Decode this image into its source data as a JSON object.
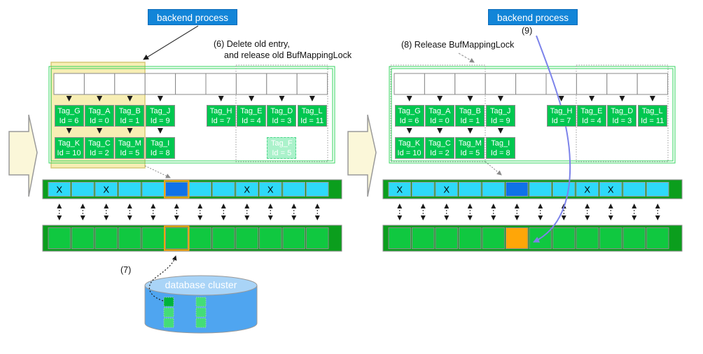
{
  "panels": {
    "left": {
      "backend_label": "backend process",
      "annotation_line1": "(6) Delete old entry,",
      "annotation_line2": "and release old BufMappingLock",
      "step_label": "(7)"
    },
    "right": {
      "backend_label": "backend process",
      "annotation_line1": "(8) Release BufMappingLock",
      "step_label": "(9)"
    }
  },
  "buffer_table": {
    "slot_count": 9,
    "row1_left": [
      {
        "tag": "Tag_G",
        "id": "Id = 6"
      },
      {
        "tag": "Tag_A",
        "id": "Id = 0"
      },
      {
        "tag": "Tag_B",
        "id": "Id = 1"
      },
      {
        "tag": "Tag_J",
        "id": "Id = 9"
      }
    ],
    "row2_left": [
      {
        "tag": "Tag_K",
        "id": "Id = 10"
      },
      {
        "tag": "Tag_C",
        "id": "Id = 2"
      },
      {
        "tag": "Tag_M",
        "id": "Id = 5"
      },
      {
        "tag": "Tag_I",
        "id": "Id = 8"
      }
    ],
    "row1_right": [
      {
        "tag": "Tag_H",
        "id": "Id = 7"
      },
      {
        "tag": "Tag_E",
        "id": "Id = 4"
      },
      {
        "tag": "Tag_D",
        "id": "Id = 3"
      },
      {
        "tag": "Tag_L",
        "id": "Id = 11"
      }
    ],
    "ghost_entry": {
      "tag": "Tag_F",
      "id": "Id = 5",
      "shown_on_panel": "left"
    }
  },
  "descriptor_layer": {
    "cell_count": 12,
    "invalid_label": "X",
    "invalid_cells": [
      1,
      3,
      9,
      10
    ],
    "target_cell": 6
  },
  "pool_layer": {
    "cell_count": 12,
    "target_cell": 6
  },
  "database_cluster": {
    "label": "database cluster"
  },
  "colors": {
    "backend_blue": "#1285d8",
    "tag_green": "#00c750",
    "ghost_green": "#abf2cb",
    "hash_border_green": "#33d45c",
    "container_green": "#0b9e1d",
    "cyan_cell": "#2ed9f9",
    "target_blue": "#0f72e8",
    "orange": "#ffa608",
    "pool_green": "#10c840",
    "highlight_yellow": "#f7eeb4",
    "highlight_yellow_border": "#d6c878",
    "big_arrow_fill": "#fbf7d9",
    "cylinder_blue": "#4fa5f0",
    "cylinder_top_blue": "#a9d4f7",
    "link_blue": "#7c83ea"
  }
}
